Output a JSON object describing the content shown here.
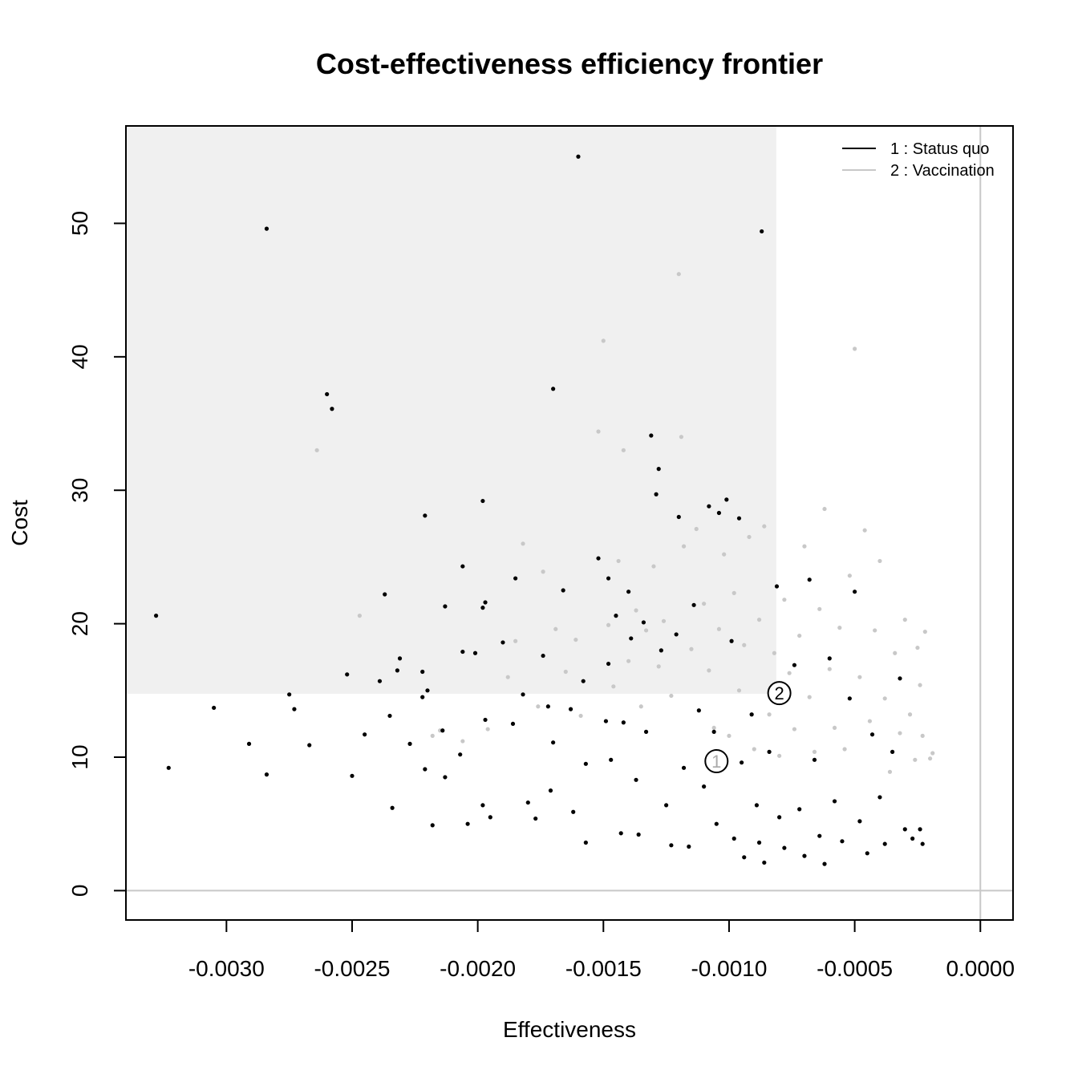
{
  "chart_data": {
    "type": "scatter",
    "title": "Cost-effectiveness efficiency frontier",
    "xlabel": "Effectiveness",
    "ylabel": "Cost",
    "xlim": [
      -0.0034,
      0.00013
    ],
    "ylim": [
      -2.2,
      57.3
    ],
    "x_ticks": [
      -0.003,
      -0.0025,
      -0.002,
      -0.0015,
      -0.001,
      -0.0005,
      0.0
    ],
    "x_tick_labels": [
      "-0.0030",
      "-0.0025",
      "-0.0020",
      "-0.0015",
      "-0.0010",
      "-0.0005",
      "0.0000"
    ],
    "y_ticks": [
      0,
      10,
      20,
      30,
      40,
      50
    ],
    "y_tick_labels": [
      "0",
      "10",
      "20",
      "30",
      "40",
      "50"
    ],
    "reference_lines": {
      "x": 0,
      "y": 0,
      "color": "#c8c8c8"
    },
    "dominated_region": {
      "x_max": -0.000812,
      "y_min": 14.75,
      "color": "#f0f0f0"
    },
    "legend": {
      "position": "top-right",
      "entries": [
        {
          "label": "1 : Status quo",
          "color": "#000000"
        },
        {
          "label": "2 : Vaccination",
          "color": "#c8c8c8"
        }
      ]
    },
    "series": [
      {
        "name": "1 : Status quo",
        "color": "#000000",
        "mean": {
          "label": "1",
          "x": -0.00105,
          "y": 9.7
        },
        "points": [
          [
            -0.00328,
            20.6
          ],
          [
            -0.00323,
            9.2
          ],
          [
            -0.00305,
            13.7
          ],
          [
            -0.00284,
            49.6
          ],
          [
            -0.00291,
            11.0
          ],
          [
            -0.00284,
            8.7
          ],
          [
            -0.00273,
            13.6
          ],
          [
            -0.00275,
            14.7
          ],
          [
            -0.00267,
            10.9
          ],
          [
            -0.0026,
            37.2
          ],
          [
            -0.00258,
            36.1
          ],
          [
            -0.00245,
            11.7
          ],
          [
            -0.00252,
            16.2
          ],
          [
            -0.0025,
            8.6
          ],
          [
            -0.00239,
            15.7
          ],
          [
            -0.00237,
            22.2
          ],
          [
            -0.00235,
            13.1
          ],
          [
            -0.00234,
            6.2
          ],
          [
            -0.00232,
            16.5
          ],
          [
            -0.00231,
            17.4
          ],
          [
            -0.00227,
            11.0
          ],
          [
            -0.00221,
            28.1
          ],
          [
            -0.00222,
            16.4
          ],
          [
            -0.00221,
            9.1
          ],
          [
            -0.0022,
            15.0
          ],
          [
            -0.00218,
            4.9
          ],
          [
            -0.00222,
            14.5
          ],
          [
            -0.00213,
            21.3
          ],
          [
            -0.00214,
            12.0
          ],
          [
            -0.00213,
            8.5
          ],
          [
            -0.00206,
            24.3
          ],
          [
            -0.00206,
            17.9
          ],
          [
            -0.00207,
            10.2
          ],
          [
            -0.00204,
            5.0
          ],
          [
            -0.00201,
            17.8
          ],
          [
            -0.00198,
            29.2
          ],
          [
            -0.00198,
            21.2
          ],
          [
            -0.00197,
            21.6
          ],
          [
            -0.00197,
            12.8
          ],
          [
            -0.00198,
            6.4
          ],
          [
            -0.00195,
            5.5
          ],
          [
            -0.0019,
            18.6
          ],
          [
            -0.00185,
            23.4
          ],
          [
            -0.00182,
            14.7
          ],
          [
            -0.00186,
            12.5
          ],
          [
            -0.0018,
            6.6
          ],
          [
            -0.00177,
            5.4
          ],
          [
            -0.00174,
            17.6
          ],
          [
            -0.0017,
            37.6
          ],
          [
            -0.00172,
            13.8
          ],
          [
            -0.0017,
            11.1
          ],
          [
            -0.00171,
            7.5
          ],
          [
            -0.00166,
            22.5
          ],
          [
            -0.00163,
            13.6
          ],
          [
            -0.00162,
            5.9
          ],
          [
            -0.0016,
            55.0
          ],
          [
            -0.00158,
            15.7
          ],
          [
            -0.00157,
            9.5
          ],
          [
            -0.00157,
            3.6
          ],
          [
            -0.00152,
            24.9
          ],
          [
            -0.00148,
            23.4
          ],
          [
            -0.00148,
            17.0
          ],
          [
            -0.00149,
            12.7
          ],
          [
            -0.00147,
            9.8
          ],
          [
            -0.00145,
            20.6
          ],
          [
            -0.00143,
            4.3
          ],
          [
            -0.00142,
            12.6
          ],
          [
            -0.0014,
            22.4
          ],
          [
            -0.00139,
            18.9
          ],
          [
            -0.00137,
            8.3
          ],
          [
            -0.00136,
            4.2
          ],
          [
            -0.00134,
            20.1
          ],
          [
            -0.00133,
            11.9
          ],
          [
            -0.00131,
            34.1
          ],
          [
            -0.00129,
            29.7
          ],
          [
            -0.00128,
            31.6
          ],
          [
            -0.00127,
            18.0
          ],
          [
            -0.00125,
            6.4
          ],
          [
            -0.00123,
            3.4
          ],
          [
            -0.00121,
            19.2
          ],
          [
            -0.0012,
            28.0
          ],
          [
            -0.00118,
            9.2
          ],
          [
            -0.00116,
            3.3
          ],
          [
            -0.00114,
            21.4
          ],
          [
            -0.00112,
            13.5
          ],
          [
            -0.0011,
            7.8
          ],
          [
            -0.00108,
            28.8
          ],
          [
            -0.00106,
            11.9
          ],
          [
            -0.00105,
            5.0
          ],
          [
            -0.00104,
            28.3
          ],
          [
            -0.00101,
            29.3
          ],
          [
            -0.00099,
            18.7
          ],
          [
            -0.00098,
            3.9
          ],
          [
            -0.00096,
            27.9
          ],
          [
            -0.00095,
            9.6
          ],
          [
            -0.00094,
            2.5
          ],
          [
            -0.00091,
            13.2
          ],
          [
            -0.00089,
            6.4
          ],
          [
            -0.00088,
            3.6
          ],
          [
            -0.00087,
            49.4
          ],
          [
            -0.00086,
            2.1
          ],
          [
            -0.00084,
            10.4
          ],
          [
            -0.00081,
            22.8
          ],
          [
            -0.0008,
            5.5
          ],
          [
            -0.00078,
            3.2
          ],
          [
            -0.00074,
            16.9
          ],
          [
            -0.00072,
            6.1
          ],
          [
            -0.0007,
            2.6
          ],
          [
            -0.00068,
            23.3
          ],
          [
            -0.00066,
            9.8
          ],
          [
            -0.00064,
            4.1
          ],
          [
            -0.00062,
            2.0
          ],
          [
            -0.0006,
            17.4
          ],
          [
            -0.00058,
            6.7
          ],
          [
            -0.00055,
            3.7
          ],
          [
            -0.00052,
            14.4
          ],
          [
            -0.0005,
            22.4
          ],
          [
            -0.00048,
            5.2
          ],
          [
            -0.00045,
            2.8
          ],
          [
            -0.00043,
            11.7
          ],
          [
            -0.0004,
            7.0
          ],
          [
            -0.00038,
            3.5
          ],
          [
            -0.00035,
            10.4
          ],
          [
            -0.00032,
            15.9
          ],
          [
            -0.0003,
            4.6
          ],
          [
            -0.00027,
            3.9
          ],
          [
            -0.00024,
            4.6
          ],
          [
            -0.00023,
            3.5
          ]
        ]
      },
      {
        "name": "2 : Vaccination",
        "color": "#c8c8c8",
        "mean": {
          "label": "2",
          "x": -0.0008,
          "y": 14.8
        },
        "points": [
          [
            -0.00264,
            33.0
          ],
          [
            -0.00247,
            20.6
          ],
          [
            -0.00218,
            11.6
          ],
          [
            -0.00215,
            12.0
          ],
          [
            -0.00206,
            11.2
          ],
          [
            -0.00196,
            12.1
          ],
          [
            -0.00188,
            16.0
          ],
          [
            -0.00185,
            18.7
          ],
          [
            -0.00182,
            26.0
          ],
          [
            -0.00176,
            13.8
          ],
          [
            -0.00174,
            23.9
          ],
          [
            -0.00169,
            19.6
          ],
          [
            -0.00165,
            16.4
          ],
          [
            -0.00161,
            18.8
          ],
          [
            -0.00159,
            13.1
          ],
          [
            -0.00152,
            34.4
          ],
          [
            -0.0015,
            41.2
          ],
          [
            -0.00148,
            19.9
          ],
          [
            -0.00146,
            15.3
          ],
          [
            -0.00144,
            24.7
          ],
          [
            -0.00142,
            33.0
          ],
          [
            -0.0014,
            17.2
          ],
          [
            -0.00137,
            21.0
          ],
          [
            -0.00135,
            13.8
          ],
          [
            -0.00133,
            19.5
          ],
          [
            -0.0013,
            24.3
          ],
          [
            -0.00128,
            16.8
          ],
          [
            -0.00126,
            20.2
          ],
          [
            -0.00123,
            14.6
          ],
          [
            -0.0012,
            46.2
          ],
          [
            -0.00119,
            34.0
          ],
          [
            -0.00118,
            25.8
          ],
          [
            -0.00115,
            18.1
          ],
          [
            -0.00113,
            27.1
          ],
          [
            -0.0011,
            21.5
          ],
          [
            -0.00108,
            16.5
          ],
          [
            -0.00106,
            12.2
          ],
          [
            -0.00104,
            19.6
          ],
          [
            -0.00102,
            25.2
          ],
          [
            -0.001,
            11.6
          ],
          [
            -0.00098,
            22.3
          ],
          [
            -0.00096,
            15.0
          ],
          [
            -0.00094,
            18.4
          ],
          [
            -0.00092,
            26.5
          ],
          [
            -0.0009,
            10.6
          ],
          [
            -0.00088,
            20.3
          ],
          [
            -0.00086,
            27.3
          ],
          [
            -0.00084,
            13.2
          ],
          [
            -0.00082,
            17.8
          ],
          [
            -0.0008,
            10.1
          ],
          [
            -0.00078,
            21.8
          ],
          [
            -0.00076,
            16.3
          ],
          [
            -0.00074,
            12.1
          ],
          [
            -0.00072,
            19.1
          ],
          [
            -0.0007,
            25.8
          ],
          [
            -0.00068,
            14.5
          ],
          [
            -0.00066,
            10.4
          ],
          [
            -0.00064,
            21.1
          ],
          [
            -0.00062,
            28.6
          ],
          [
            -0.0006,
            16.6
          ],
          [
            -0.00058,
            12.2
          ],
          [
            -0.00056,
            19.7
          ],
          [
            -0.00054,
            10.6
          ],
          [
            -0.00052,
            23.6
          ],
          [
            -0.0005,
            40.6
          ],
          [
            -0.00048,
            16.0
          ],
          [
            -0.00046,
            27.0
          ],
          [
            -0.00044,
            12.7
          ],
          [
            -0.00042,
            19.5
          ],
          [
            -0.0004,
            24.7
          ],
          [
            -0.00038,
            14.4
          ],
          [
            -0.00036,
            8.9
          ],
          [
            -0.00034,
            17.8
          ],
          [
            -0.00032,
            11.8
          ],
          [
            -0.0003,
            20.3
          ],
          [
            -0.00028,
            13.2
          ],
          [
            -0.00026,
            9.8
          ],
          [
            -0.00025,
            18.2
          ],
          [
            -0.00024,
            15.4
          ],
          [
            -0.00023,
            11.6
          ],
          [
            -0.00022,
            19.4
          ],
          [
            -0.0002,
            9.9
          ],
          [
            -0.00019,
            10.3
          ]
        ]
      }
    ]
  }
}
